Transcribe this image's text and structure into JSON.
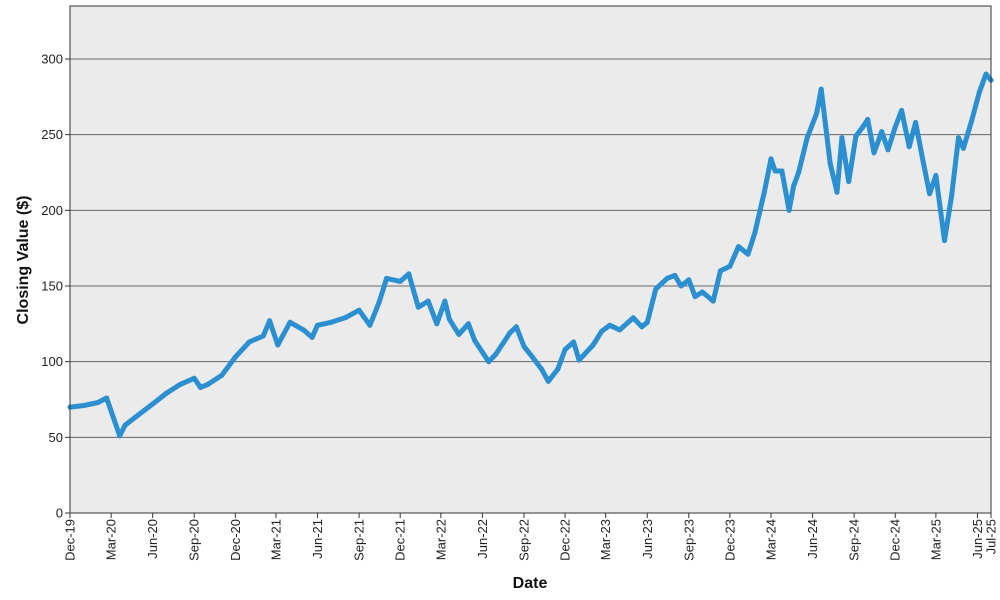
{
  "chart_data": {
    "type": "line",
    "title": "",
    "xlabel": "Date",
    "ylabel": "Closing Value ($)",
    "ylim": [
      0,
      335
    ],
    "yticks": [
      0,
      50,
      100,
      150,
      200,
      250,
      300
    ],
    "xlim": [
      "2019-12-01",
      "2025-07-01"
    ],
    "xticks": [
      {
        "date": "2019-12-01",
        "label": "Dec-19"
      },
      {
        "date": "2020-03-01",
        "label": "Mar-20"
      },
      {
        "date": "2020-06-01",
        "label": "Jun-20"
      },
      {
        "date": "2020-09-01",
        "label": "Sep-20"
      },
      {
        "date": "2020-12-01",
        "label": "Dec-20"
      },
      {
        "date": "2021-03-01",
        "label": "Mar-21"
      },
      {
        "date": "2021-06-01",
        "label": "Jun-21"
      },
      {
        "date": "2021-09-01",
        "label": "Sep-21"
      },
      {
        "date": "2021-12-01",
        "label": "Dec-21"
      },
      {
        "date": "2022-03-01",
        "label": "Mar-22"
      },
      {
        "date": "2022-06-01",
        "label": "Jun-22"
      },
      {
        "date": "2022-09-01",
        "label": "Sep-22"
      },
      {
        "date": "2022-12-01",
        "label": "Dec-22"
      },
      {
        "date": "2023-03-01",
        "label": "Mar-23"
      },
      {
        "date": "2023-06-01",
        "label": "Jun-23"
      },
      {
        "date": "2023-09-01",
        "label": "Sep-23"
      },
      {
        "date": "2023-12-01",
        "label": "Dec-23"
      },
      {
        "date": "2024-03-01",
        "label": "Mar-24"
      },
      {
        "date": "2024-06-01",
        "label": "Jun-24"
      },
      {
        "date": "2024-09-01",
        "label": "Sep-24"
      },
      {
        "date": "2024-12-01",
        "label": "Dec-24"
      },
      {
        "date": "2025-03-01",
        "label": "Mar-25"
      },
      {
        "date": "2025-06-01",
        "label": "Jun-25"
      },
      {
        "date": "2025-07-01",
        "label": "Jul-25"
      }
    ],
    "grid": "horizontal",
    "colors": {
      "line": "#2b8fd0",
      "plot_bg": "#ebebeb",
      "grid": "#666666"
    },
    "series": [
      {
        "x": [
          "2019-12-01",
          "2020-01-01",
          "2020-02-01",
          "2020-02-20",
          "2020-03-20",
          "2020-04-01",
          "2020-05-01",
          "2020-06-01",
          "2020-07-01",
          "2020-08-01",
          "2020-09-01",
          "2020-09-15",
          "2020-10-01",
          "2020-11-01",
          "2020-12-01",
          "2021-01-01",
          "2021-02-01",
          "2021-02-15",
          "2021-03-05",
          "2021-04-01",
          "2021-05-01",
          "2021-05-20",
          "2021-06-01",
          "2021-07-01",
          "2021-08-01",
          "2021-09-01",
          "2021-09-25",
          "2021-10-15",
          "2021-11-01",
          "2021-12-01",
          "2021-12-20",
          "2022-01-10",
          "2022-02-01",
          "2022-02-20",
          "2022-03-10",
          "2022-03-20",
          "2022-04-10",
          "2022-05-01",
          "2022-05-15",
          "2022-06-15",
          "2022-07-01",
          "2022-08-01",
          "2022-08-15",
          "2022-09-01",
          "2022-09-20",
          "2022-10-10",
          "2022-10-25",
          "2022-11-15",
          "2022-12-01",
          "2022-12-20",
          "2023-01-01",
          "2023-02-01",
          "2023-02-20",
          "2023-03-10",
          "2023-04-01",
          "2023-05-01",
          "2023-05-20",
          "2023-06-01",
          "2023-06-20",
          "2023-07-15",
          "2023-08-01",
          "2023-08-15",
          "2023-09-01",
          "2023-09-15",
          "2023-10-01",
          "2023-10-25",
          "2023-11-10",
          "2023-12-01",
          "2023-12-20",
          "2024-01-10",
          "2024-01-25",
          "2024-02-15",
          "2024-03-01",
          "2024-03-10",
          "2024-03-25",
          "2024-04-10",
          "2024-04-20",
          "2024-05-01",
          "2024-05-20",
          "2024-06-10",
          "2024-06-20",
          "2024-07-10",
          "2024-07-25",
          "2024-08-05",
          "2024-08-20",
          "2024-09-05",
          "2024-09-20",
          "2024-10-01",
          "2024-10-15",
          "2024-11-01",
          "2024-11-15",
          "2024-12-01",
          "2024-12-15",
          "2025-01-01",
          "2025-01-15",
          "2025-02-01",
          "2025-02-15",
          "2025-03-01",
          "2025-03-20",
          "2025-04-05",
          "2025-04-20",
          "2025-05-01",
          "2025-05-20",
          "2025-06-05",
          "2025-06-20",
          "2025-07-01"
        ],
        "y": [
          70,
          71,
          73,
          76,
          51,
          58,
          65,
          72,
          79,
          85,
          89,
          83,
          85,
          91,
          103,
          113,
          117,
          127,
          111,
          126,
          121,
          116,
          124,
          126,
          129,
          134,
          124,
          139,
          155,
          153,
          158,
          136,
          140,
          125,
          140,
          128,
          118,
          125,
          114,
          100,
          105,
          119,
          123,
          110,
          103,
          95,
          87,
          95,
          108,
          113,
          101,
          111,
          120,
          124,
          121,
          129,
          123,
          126,
          148,
          155,
          157,
          150,
          154,
          143,
          146,
          140,
          160,
          163,
          176,
          171,
          185,
          212,
          234,
          226,
          226,
          200,
          216,
          225,
          248,
          264,
          280,
          231,
          212,
          248,
          219,
          249,
          255,
          260,
          238,
          252,
          240,
          255,
          266,
          242,
          258,
          232,
          211,
          223,
          180,
          210,
          248,
          241,
          260,
          278,
          290,
          286
        ]
      }
    ]
  }
}
